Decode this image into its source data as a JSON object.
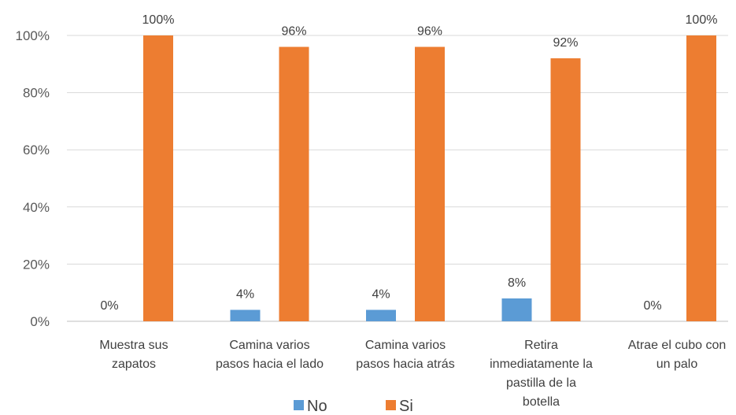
{
  "chart_data": {
    "type": "bar",
    "title": "",
    "xlabel": "",
    "ylabel": "",
    "ylim": [
      0,
      100
    ],
    "y_ticks": [
      "0%",
      "20%",
      "40%",
      "60%",
      "80%",
      "100%"
    ],
    "grid": true,
    "legend_position": "bottom",
    "categories": [
      [
        "Muestra sus",
        "zapatos"
      ],
      [
        "Camina varios",
        "pasos hacia el lado"
      ],
      [
        "Camina varios",
        "pasos hacia atrás"
      ],
      [
        "Retira",
        "inmediatamente la",
        "pastilla de la",
        "botella"
      ],
      [
        "Atrae el cubo con",
        "un palo"
      ]
    ],
    "series": [
      {
        "name": "No",
        "color": "#5B9BD5",
        "values": [
          0,
          4,
          4,
          8,
          0
        ],
        "labels": [
          "0%",
          "4%",
          "4%",
          "8%",
          "0%"
        ]
      },
      {
        "name": "Si",
        "color": "#ED7D31",
        "values": [
          100,
          96,
          96,
          92,
          100
        ],
        "labels": [
          "100%",
          "96%",
          "96%",
          "92%",
          "100%"
        ]
      }
    ]
  }
}
